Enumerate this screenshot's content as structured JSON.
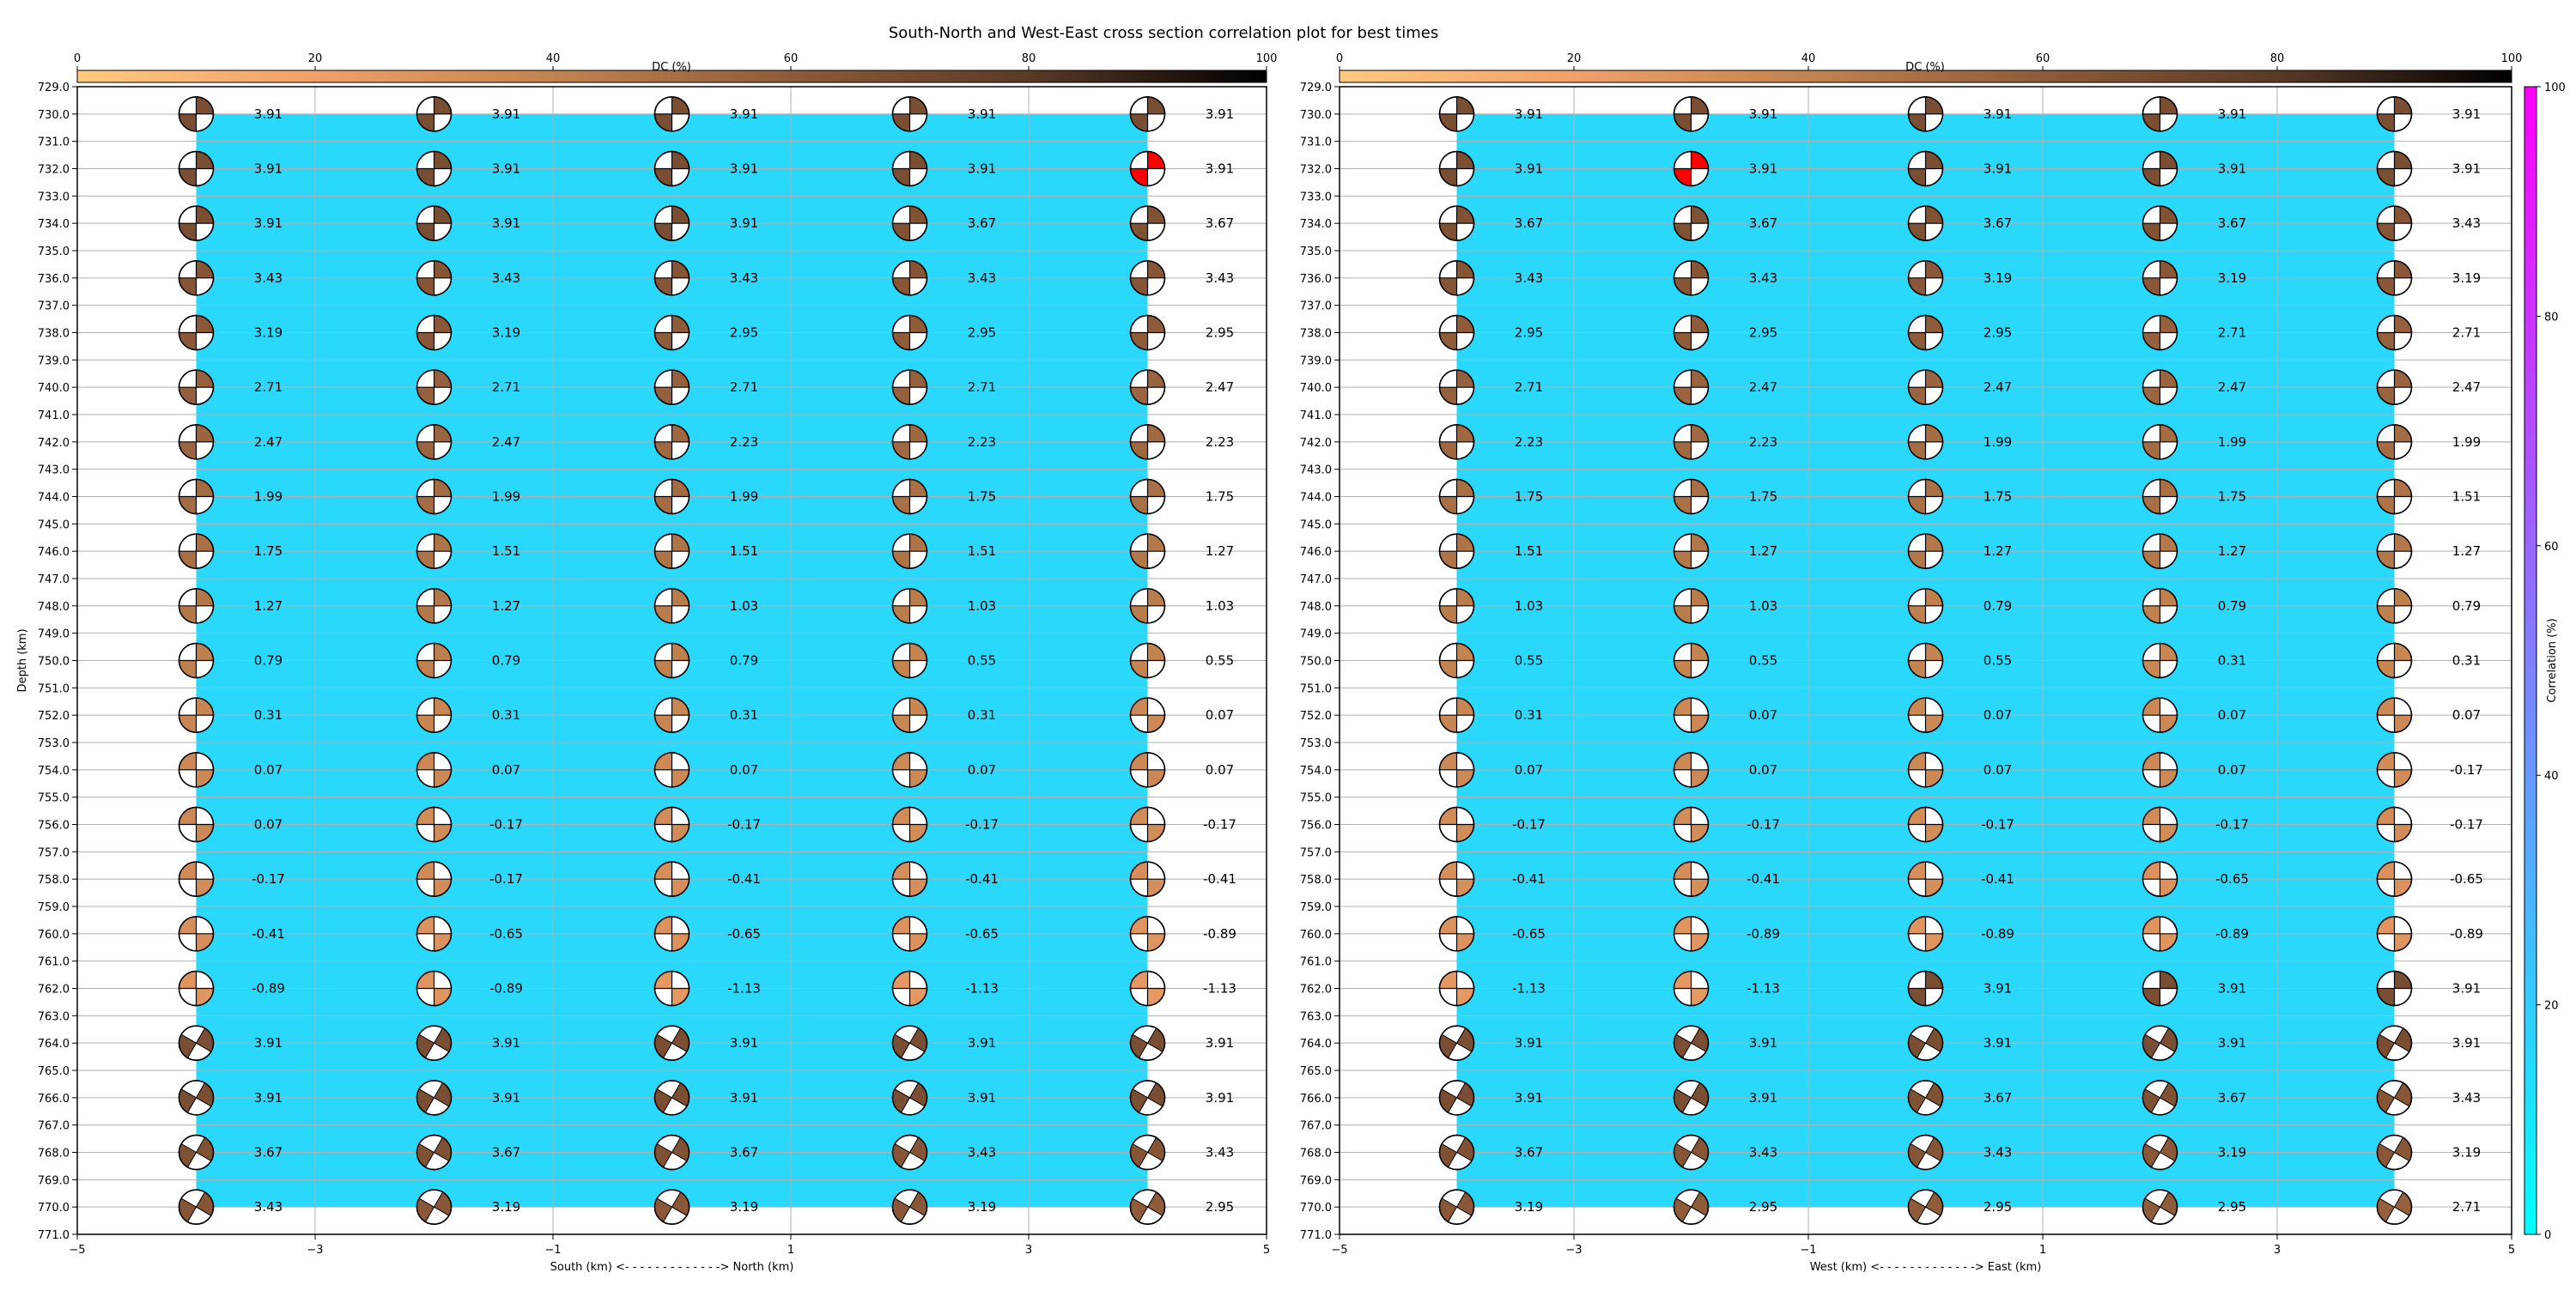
{
  "title": "South-North and West-East cross section correlation plot for best times",
  "colors": {
    "background_fill": "#29d8fb",
    "best_beachball": "#ff0000",
    "grid": "#b0b0b0",
    "dc_colormap": [
      "#ffc97f",
      "#f2a068",
      "#c2834f",
      "#8e5b3a",
      "#5a3a26",
      "#000000"
    ],
    "correlation_colormap": [
      "#00ffff",
      "#ff00ff"
    ]
  },
  "dc_colorbar": {
    "label": "DC (%)",
    "ticks": [
      "0",
      "20",
      "40",
      "60",
      "80",
      "100"
    ]
  },
  "correlation_colorbar": {
    "label": "Correlation (%)",
    "ticks": [
      "0",
      "20",
      "40",
      "60",
      "80",
      "100"
    ]
  },
  "depth_ticks": [
    "729.0",
    "730.0",
    "731.0",
    "732.0",
    "733.0",
    "734.0",
    "735.0",
    "736.0",
    "737.0",
    "738.0",
    "739.0",
    "740.0",
    "741.0",
    "742.0",
    "743.0",
    "744.0",
    "745.0",
    "746.0",
    "747.0",
    "748.0",
    "749.0",
    "750.0",
    "751.0",
    "752.0",
    "753.0",
    "754.0",
    "755.0",
    "756.0",
    "757.0",
    "758.0",
    "759.0",
    "760.0",
    "761.0",
    "762.0",
    "763.0",
    "764.0",
    "765.0",
    "766.0",
    "767.0",
    "768.0",
    "769.0",
    "770.0",
    "771.0"
  ],
  "x_ticks": [
    "−5",
    "−3",
    "−1",
    "1",
    "3",
    "5"
  ],
  "chart_data": [
    {
      "type": "scatter",
      "name": "south-north",
      "xlabel": "South (km) <- - - - - - - - - - - - -> North (km)",
      "ylabel": "Depth (km)",
      "xlim": [
        -5,
        5
      ],
      "ylim": [
        771,
        729
      ],
      "x": [
        -4,
        -2,
        0,
        2,
        4
      ],
      "depths": [
        730,
        732,
        734,
        736,
        738,
        740,
        742,
        744,
        746,
        748,
        750,
        752,
        754,
        756,
        758,
        760,
        762,
        764,
        766,
        768,
        770
      ],
      "best": {
        "x": 4,
        "depth": 732
      },
      "labels": [
        [
          "3.91",
          "3.91",
          "3.91",
          "3.91",
          "3.91"
        ],
        [
          "3.91",
          "3.91",
          "3.91",
          "3.91",
          "3.91"
        ],
        [
          "3.91",
          "3.91",
          "3.91",
          "3.67",
          "3.67"
        ],
        [
          "3.43",
          "3.43",
          "3.43",
          "3.43",
          "3.43"
        ],
        [
          "3.19",
          "3.19",
          "2.95",
          "2.95",
          "2.95"
        ],
        [
          "2.71",
          "2.71",
          "2.71",
          "2.71",
          "2.47"
        ],
        [
          "2.47",
          "2.47",
          "2.23",
          "2.23",
          "2.23"
        ],
        [
          "1.99",
          "1.99",
          "1.99",
          "1.75",
          "1.75"
        ],
        [
          "1.75",
          "1.51",
          "1.51",
          "1.51",
          "1.27"
        ],
        [
          "1.27",
          "1.27",
          "1.03",
          "1.03",
          "1.03"
        ],
        [
          "0.79",
          "0.79",
          "0.79",
          "0.55",
          "0.55"
        ],
        [
          "0.31",
          "0.31",
          "0.31",
          "0.31",
          "0.07"
        ],
        [
          "0.07",
          "0.07",
          "0.07",
          "0.07",
          "0.07"
        ],
        [
          "0.07",
          "-0.17",
          "-0.17",
          "-0.17",
          "-0.17"
        ],
        [
          "-0.17",
          "-0.17",
          "-0.41",
          "-0.41",
          "-0.41"
        ],
        [
          "-0.41",
          "-0.65",
          "-0.65",
          "-0.65",
          "-0.89"
        ],
        [
          "-0.89",
          "-0.89",
          "-1.13",
          "-1.13",
          "-1.13"
        ],
        [
          "3.91",
          "3.91",
          "3.91",
          "3.91",
          "3.91"
        ],
        [
          "3.91",
          "3.91",
          "3.91",
          "3.91",
          "3.91"
        ],
        [
          "3.67",
          "3.67",
          "3.67",
          "3.43",
          "3.43"
        ],
        [
          "3.43",
          "3.19",
          "3.19",
          "3.19",
          "2.95"
        ]
      ]
    },
    {
      "type": "scatter",
      "name": "west-east",
      "xlabel": "West (km) <- - - - - - - - - - - - -> East (km)",
      "ylabel": "",
      "xlim": [
        -5,
        5
      ],
      "ylim": [
        771,
        729
      ],
      "x": [
        -4,
        -2,
        0,
        2,
        4
      ],
      "depths": [
        730,
        732,
        734,
        736,
        738,
        740,
        742,
        744,
        746,
        748,
        750,
        752,
        754,
        756,
        758,
        760,
        762,
        764,
        766,
        768,
        770
      ],
      "best": {
        "x": -2,
        "depth": 732
      },
      "labels": [
        [
          "3.91",
          "3.91",
          "3.91",
          "3.91",
          "3.91"
        ],
        [
          "3.91",
          "3.91",
          "3.91",
          "3.91",
          "3.91"
        ],
        [
          "3.67",
          "3.67",
          "3.67",
          "3.67",
          "3.43"
        ],
        [
          "3.43",
          "3.43",
          "3.19",
          "3.19",
          "3.19"
        ],
        [
          "2.95",
          "2.95",
          "2.95",
          "2.71",
          "2.71"
        ],
        [
          "2.71",
          "2.47",
          "2.47",
          "2.47",
          "2.47"
        ],
        [
          "2.23",
          "2.23",
          "1.99",
          "1.99",
          "1.99"
        ],
        [
          "1.75",
          "1.75",
          "1.75",
          "1.75",
          "1.51"
        ],
        [
          "1.51",
          "1.27",
          "1.27",
          "1.27",
          "1.27"
        ],
        [
          "1.03",
          "1.03",
          "0.79",
          "0.79",
          "0.79"
        ],
        [
          "0.55",
          "0.55",
          "0.55",
          "0.31",
          "0.31"
        ],
        [
          "0.31",
          "0.07",
          "0.07",
          "0.07",
          "0.07"
        ],
        [
          "0.07",
          "0.07",
          "0.07",
          "0.07",
          "-0.17"
        ],
        [
          "-0.17",
          "-0.17",
          "-0.17",
          "-0.17",
          "-0.17"
        ],
        [
          "-0.41",
          "-0.41",
          "-0.41",
          "-0.65",
          "-0.65"
        ],
        [
          "-0.65",
          "-0.89",
          "-0.89",
          "-0.89",
          "-0.89"
        ],
        [
          "-1.13",
          "-1.13",
          "3.91",
          "3.91",
          "3.91"
        ],
        [
          "3.91",
          "3.91",
          "3.91",
          "3.91",
          "3.91"
        ],
        [
          "3.91",
          "3.91",
          "3.67",
          "3.67",
          "3.43"
        ],
        [
          "3.67",
          "3.43",
          "3.43",
          "3.19",
          "3.19"
        ],
        [
          "3.19",
          "2.95",
          "2.95",
          "2.95",
          "2.71"
        ]
      ]
    }
  ]
}
